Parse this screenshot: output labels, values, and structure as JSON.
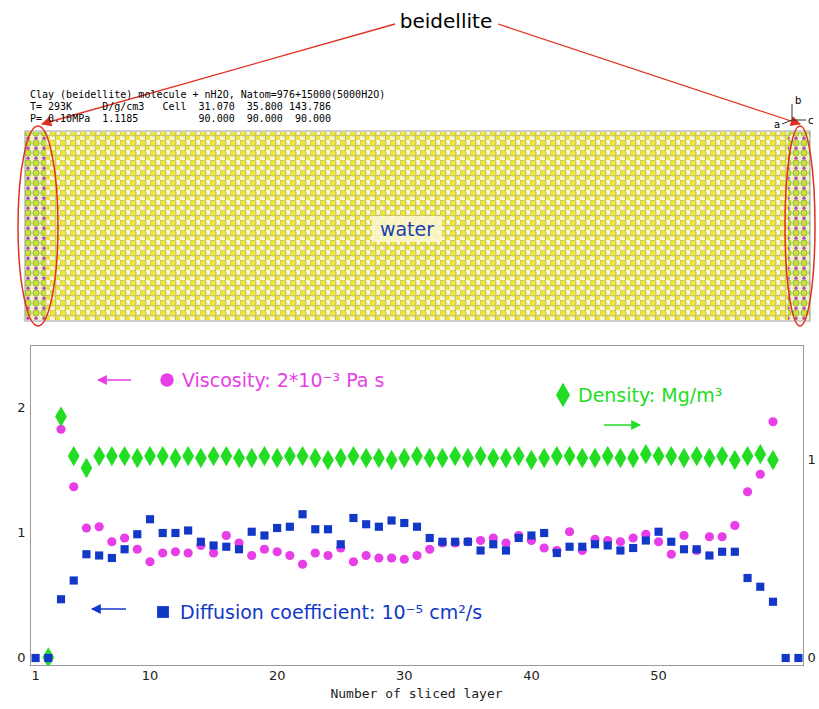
{
  "chart_data": {
    "type": "scatter",
    "x_label": "Number of sliced layer",
    "x": [
      1,
      2,
      3,
      4,
      5,
      6,
      7,
      8,
      9,
      10,
      11,
      12,
      13,
      14,
      15,
      16,
      17,
      18,
      19,
      20,
      21,
      22,
      23,
      24,
      25,
      26,
      27,
      28,
      29,
      30,
      31,
      32,
      33,
      34,
      35,
      36,
      37,
      38,
      39,
      40,
      41,
      42,
      43,
      44,
      45,
      46,
      47,
      48,
      49,
      50,
      51,
      52,
      53,
      54,
      55,
      56,
      57,
      58,
      59,
      60,
      61
    ],
    "xlim": [
      0.6,
      61.4
    ],
    "xticks": [
      1,
      10,
      20,
      30,
      40,
      50
    ],
    "ylim": [
      -0.06,
      2.5
    ],
    "yticks": [
      0,
      1,
      2
    ],
    "y2lim": [
      -0.04,
      1.58
    ],
    "y2ticks": [
      0,
      1
    ],
    "grid": false,
    "series": [
      {
        "name": "Viscosity: 2*10⁻³ Pa s",
        "color": "#e83ee8",
        "marker": "circle",
        "values": [
          null,
          null,
          1.83,
          1.37,
          1.04,
          1.05,
          0.93,
          0.96,
          0.87,
          0.77,
          0.84,
          0.85,
          0.84,
          0.9,
          0.84,
          0.98,
          0.92,
          0.82,
          0.87,
          0.85,
          0.82,
          0.75,
          0.84,
          0.82,
          0.88,
          0.77,
          0.82,
          0.8,
          0.8,
          0.79,
          0.82,
          0.87,
          0.92,
          0.92,
          0.93,
          0.94,
          0.96,
          0.92,
          0.98,
          0.94,
          0.88,
          0.86,
          1.01,
          0.86,
          0.95,
          0.94,
          0.93,
          0.96,
          0.99,
          0.93,
          0.83,
          0.98,
          0.86,
          0.97,
          0.97,
          1.06,
          1.33,
          1.47,
          1.89,
          null,
          null
        ]
      },
      {
        "name": "Density: Mg/m³",
        "color": "#22dd22",
        "marker": "diamond",
        "axis": "y2",
        "values": [
          null,
          0,
          1.22,
          1.02,
          0.96,
          1.02,
          1.02,
          1.02,
          1.01,
          1.02,
          1.02,
          1.01,
          1.02,
          1.01,
          1.02,
          1.02,
          1.01,
          1.01,
          1.02,
          1.01,
          1.02,
          1.02,
          1.01,
          1.0,
          1.01,
          1.02,
          1.01,
          1.01,
          1.0,
          1.01,
          1.02,
          1.01,
          1.01,
          1.02,
          1.01,
          1.02,
          1.01,
          1.01,
          1.02,
          1.0,
          1.01,
          1.02,
          1.02,
          1.01,
          1.01,
          1.02,
          1.01,
          1.01,
          1.03,
          1.02,
          1.02,
          1.01,
          1.02,
          1.01,
          1.02,
          1.0,
          1.02,
          1.03,
          1.0,
          null,
          null
        ]
      },
      {
        "name": "Diffusion coefficient: 10⁻⁵ cm²/s",
        "color": "#1238c8",
        "marker": "square",
        "values": [
          0,
          0,
          0.47,
          0.62,
          0.83,
          0.82,
          0.8,
          0.87,
          0.99,
          1.11,
          1.0,
          1.0,
          1.02,
          0.93,
          0.9,
          0.89,
          0.87,
          1.01,
          0.98,
          1.04,
          1.05,
          1.15,
          1.03,
          1.03,
          0.91,
          1.12,
          1.07,
          1.05,
          1.1,
          1.08,
          1.05,
          0.96,
          0.93,
          0.93,
          0.93,
          0.86,
          0.91,
          0.86,
          0.96,
          0.98,
          1.0,
          0.84,
          0.89,
          0.89,
          0.91,
          0.9,
          0.86,
          0.88,
          0.94,
          1.01,
          0.93,
          0.87,
          0.87,
          0.82,
          0.85,
          0.85,
          0.64,
          0.57,
          0.45,
          0,
          0
        ]
      }
    ]
  },
  "snapshot": {
    "label": "beidellite",
    "region_label": "water",
    "header": [
      "Clay (beidellite) molecule + nH2O, Natom=976+15000(5000H2O)",
      "T= 293K     D/g/cm3   Cell  31.070  35.800 143.786",
      "P= 0.10MPa  1.1185          90.000  90.000  90.000"
    ],
    "axes": [
      "a",
      "b",
      "c"
    ]
  }
}
